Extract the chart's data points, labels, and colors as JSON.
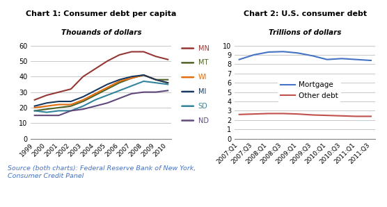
{
  "chart1": {
    "title": "Chart 1: Consumer debt per capita",
    "subtitle": "Thouands of dollars",
    "ylim": [
      0,
      60
    ],
    "yticks": [
      0,
      10,
      20,
      30,
      40,
      50,
      60
    ],
    "years": [
      "1999",
      "2000",
      "2001",
      "2002",
      "2003",
      "2004",
      "2005",
      "2006",
      "2007",
      "2008",
      "2009",
      "2010"
    ],
    "series": {
      "MN": [
        25,
        28,
        30,
        32,
        40,
        45,
        50,
        54,
        56,
        56,
        53,
        51
      ],
      "MT": [
        18,
        19,
        20,
        21,
        24,
        28,
        32,
        36,
        39,
        41,
        38,
        38
      ],
      "WI": [
        20,
        21,
        22,
        22,
        25,
        29,
        33,
        37,
        39,
        41,
        38,
        36
      ],
      "MI": [
        21,
        23,
        24,
        24,
        27,
        31,
        35,
        38,
        40,
        41,
        38,
        36
      ],
      "SD": [
        18,
        17,
        18,
        18,
        21,
        25,
        28,
        31,
        34,
        37,
        36,
        35
      ],
      "ND": [
        15,
        15,
        15,
        18,
        19,
        21,
        23,
        26,
        29,
        30,
        30,
        31
      ]
    },
    "colors": {
      "MN": "#943634",
      "MT": "#4f6228",
      "WI": "#e36c09",
      "MI": "#17375e",
      "SD": "#31849b",
      "ND": "#60497a"
    }
  },
  "chart2": {
    "title": "Chart 2: U.S. consumer debt",
    "subtitle": "Trillions of dollars",
    "ylim": [
      0,
      10
    ],
    "yticks": [
      0,
      1,
      2,
      3,
      4,
      5,
      6,
      7,
      8,
      9,
      10
    ],
    "quarters": [
      "2007:Q1",
      "2007:Q3",
      "2008:Q1",
      "2008:Q3",
      "2009:Q1",
      "2009:Q3",
      "2010:Q1",
      "2010:Q3",
      "2011:Q1",
      "2011:Q3"
    ],
    "series": {
      "Mortgage": [
        8.5,
        9.0,
        9.3,
        9.35,
        9.2,
        8.9,
        8.5,
        8.6,
        8.5,
        8.4
      ],
      "Other debt": [
        2.6,
        2.65,
        2.7,
        2.7,
        2.65,
        2.55,
        2.5,
        2.45,
        2.4,
        2.4
      ]
    },
    "colors": {
      "Mortgage": "#4472c4",
      "Other debt": "#c0504d"
    }
  },
  "source_text": "Source (both charts): Federal Reserve Bank of New York,\nConsumer Credit Panel",
  "background_color": "#ffffff",
  "grid_color": "#bfbfbf"
}
